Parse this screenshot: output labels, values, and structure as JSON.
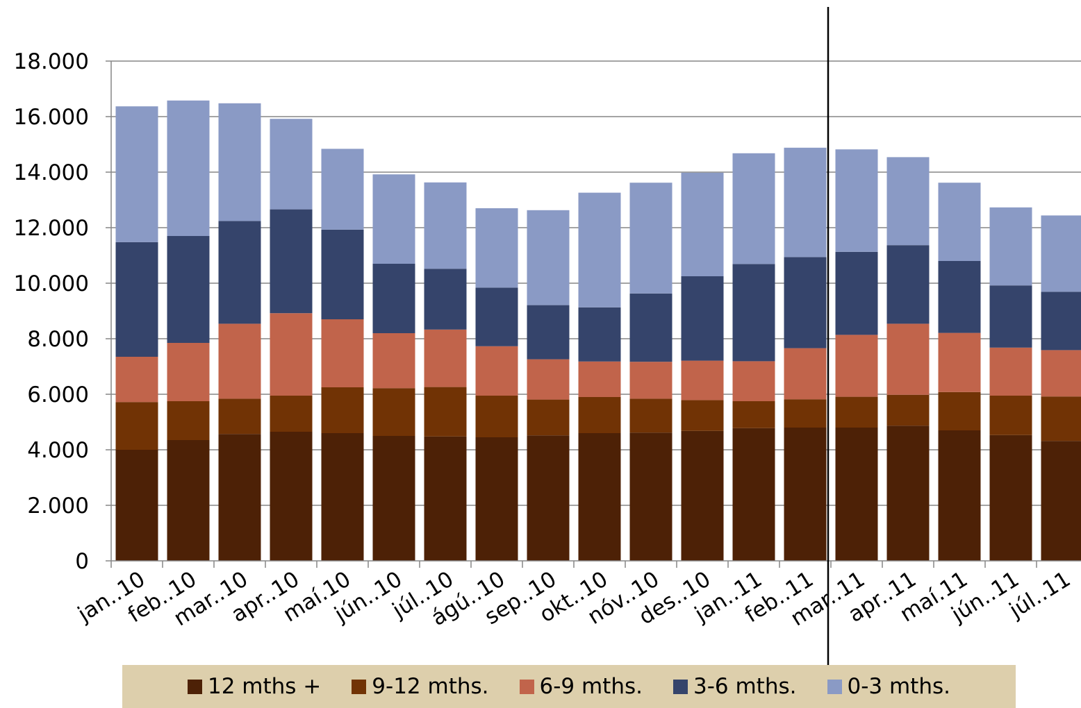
{
  "chart_data": {
    "type": "bar",
    "stacked": true,
    "title": "",
    "xlabel": "",
    "ylabel": "",
    "ylim": [
      0,
      18000
    ],
    "yticks": [
      0,
      2000,
      4000,
      6000,
      8000,
      10000,
      12000,
      14000,
      16000,
      18000
    ],
    "ytick_labels": [
      "0",
      "2.000",
      "4.000",
      "6.000",
      "8.000",
      "10.000",
      "12.000",
      "14.000",
      "16.000",
      "18.000"
    ],
    "grid": true,
    "legend_position": "bottom",
    "categories": [
      "jan..10",
      "feb..10",
      "mar..10",
      "apr..10",
      "maí.10",
      "jún..10",
      "júl..10",
      "ágú..10",
      "sep..10",
      "okt..10",
      "nóv..10",
      "des..10",
      "jan..11",
      "feb..11",
      "mar..11",
      "apr..11",
      "maí.11",
      "jún..11",
      "júl..11"
    ],
    "marker_line_after": "feb..11",
    "series": [
      {
        "name": "12 mths +",
        "color": "#4d2106",
        "values": [
          4000,
          4350,
          4570,
          4650,
          4600,
          4500,
          4480,
          4450,
          4520,
          4600,
          4620,
          4680,
          4780,
          4800,
          4800,
          4870,
          4700,
          4530,
          4320
        ]
      },
      {
        "name": "9-12 mths.",
        "color": "#713305",
        "values": [
          1720,
          1400,
          1270,
          1300,
          1650,
          1720,
          1780,
          1500,
          1290,
          1300,
          1220,
          1110,
          970,
          1020,
          1110,
          1110,
          1380,
          1420,
          1600
        ]
      },
      {
        "name": "6-9 mths.",
        "color": "#c1644b",
        "values": [
          1630,
          2100,
          2700,
          2970,
          2450,
          1980,
          2070,
          1780,
          1450,
          1280,
          1330,
          1420,
          1440,
          1840,
          2230,
          2560,
          2130,
          1730,
          1670
        ]
      },
      {
        "name": "3-6 mths.",
        "color": "#35446b",
        "values": [
          4130,
          3850,
          3700,
          3740,
          3230,
          2500,
          2190,
          2110,
          1950,
          1950,
          2460,
          3040,
          3500,
          3280,
          2990,
          2830,
          2590,
          2240,
          2100
        ]
      },
      {
        "name": "0-3 mths.",
        "color": "#8a9ac5",
        "values": [
          4890,
          4880,
          4240,
          3260,
          2910,
          3220,
          3110,
          2860,
          3420,
          4130,
          3990,
          3730,
          3990,
          3940,
          3690,
          3170,
          2820,
          2810,
          2750
        ]
      }
    ]
  }
}
